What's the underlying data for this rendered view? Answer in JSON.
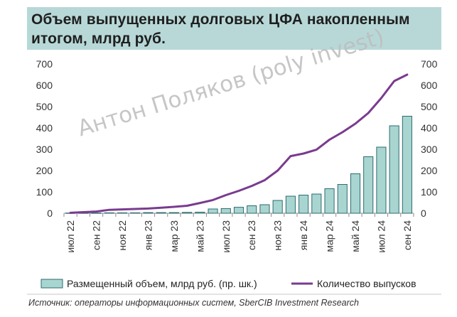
{
  "title": {
    "line1": "Объем выпущенных долговых ЦФА накопленным",
    "line2": "итогом, млрд руб."
  },
  "watermark": "Антон Поляков (poly invest)",
  "source": "Источник: операторы информационных систем, SberCIB Investment Research",
  "legend": {
    "bars": "Размещенный объем, млрд руб. (пр. шк.)",
    "line": "Количество выпусков"
  },
  "colors": {
    "bar_fill": "#a9d5d1",
    "bar_stroke": "#2e6b6e",
    "line": "#7a3b8f",
    "title_bg": "#b8d8d8",
    "axis": "#8c8c8c"
  },
  "chart_data": {
    "type": "bar+line",
    "months": [
      "июл 22",
      "авг 22",
      "сен 22",
      "окт 22",
      "ноя 22",
      "дек 22",
      "янв 23",
      "фев 23",
      "мар 23",
      "апр 23",
      "май 23",
      "июн 23",
      "июл 23",
      "авг 23",
      "сен 23",
      "окт 23",
      "ноя 23",
      "дек 23",
      "янв 24",
      "фев 24",
      "мар 24",
      "апр 24",
      "май 24",
      "июн 24",
      "июл 24",
      "авг 24",
      "сен 24"
    ],
    "tick_labels": [
      "июл 22",
      "сен 22",
      "ноя 22",
      "янв 23",
      "мар 23",
      "май 23",
      "июл 23",
      "сен 23",
      "ноя 23",
      "янв 24",
      "мар 24",
      "май 24",
      "июл 24",
      "сен 24"
    ],
    "series": [
      {
        "name": "Размещенный объем, млрд руб. (пр. шк.)",
        "type": "bar",
        "axis": "right",
        "values": [
          1,
          1,
          1,
          2,
          2,
          2,
          3,
          3,
          3,
          4,
          5,
          20,
          22,
          28,
          35,
          40,
          60,
          80,
          85,
          90,
          115,
          135,
          185,
          265,
          310,
          410,
          455
        ]
      },
      {
        "name": "Количество выпусков",
        "type": "line",
        "axis": "left",
        "values": [
          2,
          5,
          8,
          16,
          18,
          20,
          22,
          26,
          30,
          35,
          48,
          62,
          85,
          105,
          128,
          155,
          200,
          268,
          280,
          298,
          345,
          380,
          420,
          470,
          540,
          620,
          650
        ]
      }
    ],
    "y_left": {
      "min": 0,
      "max": 700,
      "ticks": [
        0,
        100,
        200,
        300,
        400,
        500,
        600,
        700
      ]
    },
    "y_right": {
      "min": 0,
      "max": 700,
      "ticks": [
        0,
        100,
        200,
        300,
        400,
        500,
        600,
        700
      ]
    }
  }
}
